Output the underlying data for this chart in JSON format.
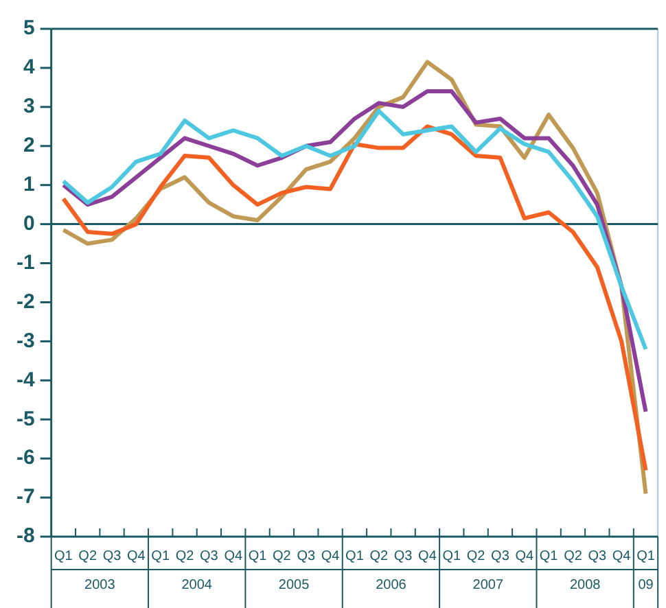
{
  "chart_data": {
    "type": "line",
    "categories": [
      "Q1",
      "Q2",
      "Q3",
      "Q4",
      "Q1",
      "Q2",
      "Q3",
      "Q4",
      "Q1",
      "Q2",
      "Q3",
      "Q4",
      "Q1",
      "Q2",
      "Q3",
      "Q4",
      "Q1",
      "Q2",
      "Q3",
      "Q4",
      "Q1",
      "Q2",
      "Q3",
      "Q4",
      "Q1"
    ],
    "series": [
      {
        "color": "#4dc8e0",
        "values": [
          1.1,
          0.55,
          0.95,
          1.6,
          1.8,
          2.65,
          2.2,
          2.4,
          2.2,
          1.75,
          2.0,
          1.75,
          2.0,
          2.9,
          2.3,
          2.4,
          2.5,
          1.85,
          2.45,
          2.05,
          1.85,
          1.1,
          0.2,
          -1.6,
          -3.2
        ]
      },
      {
        "color": "#8b3f98",
        "values": [
          1.0,
          0.5,
          0.7,
          1.2,
          1.7,
          2.2,
          2.0,
          1.8,
          1.5,
          1.7,
          2.0,
          2.1,
          2.7,
          3.1,
          3.0,
          3.4,
          3.4,
          2.6,
          2.7,
          2.2,
          2.2,
          1.5,
          0.5,
          -1.6,
          -4.8
        ]
      },
      {
        "color": "#f26122",
        "values": [
          0.65,
          -0.2,
          -0.25,
          0.0,
          0.95,
          1.75,
          1.7,
          1.0,
          0.5,
          0.8,
          0.95,
          0.9,
          2.05,
          1.95,
          1.95,
          2.5,
          2.3,
          1.75,
          1.7,
          0.15,
          0.3,
          -0.2,
          -1.1,
          -3.0,
          -6.3
        ]
      },
      {
        "color": "#c09a55",
        "values": [
          -0.15,
          -0.5,
          -0.4,
          0.15,
          0.9,
          1.2,
          0.55,
          0.2,
          0.1,
          0.7,
          1.4,
          1.6,
          2.2,
          3.0,
          3.25,
          4.15,
          3.7,
          2.55,
          2.5,
          1.7,
          2.8,
          1.95,
          0.8,
          -1.6,
          -6.9
        ]
      }
    ],
    "annotations": [
      "2003",
      "2004",
      "2005",
      "2006",
      "2007",
      "2008",
      "09"
    ],
    "ylim": [
      -8,
      5
    ],
    "yticks": [
      -8,
      -7,
      -6,
      -5,
      -4,
      -3,
      -2,
      -1,
      0,
      1,
      2,
      3,
      4,
      5
    ],
    "ref_lines": [
      {
        "axis": "y",
        "value": 0,
        "color": "#1a5a64"
      }
    ],
    "grid": false,
    "legend": false,
    "marker": "none",
    "line_style": "solid"
  }
}
